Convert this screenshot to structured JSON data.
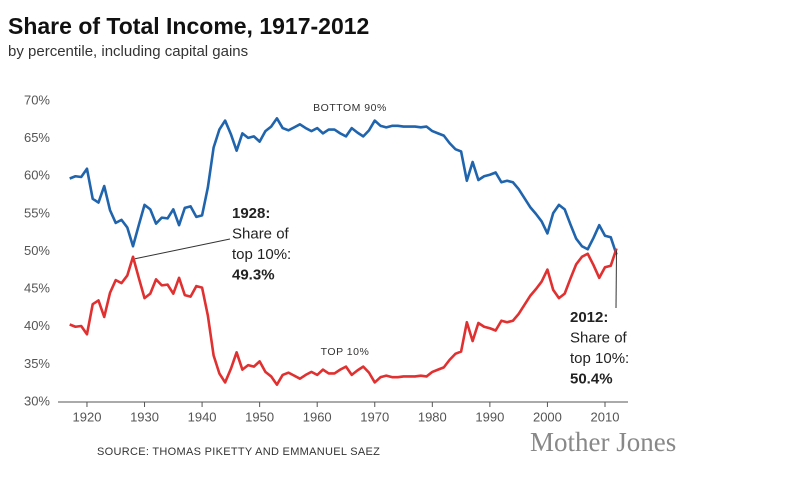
{
  "chart_data": {
    "type": "line",
    "title": "Share of Total Income, 1917-2012",
    "subtitle": "by percentile, including capital gains",
    "source": "SOURCE: THOMAS PIKETTY AND EMMANUEL SAEZ",
    "logo": "Mother Jones",
    "x": [
      1917,
      1918,
      1919,
      1920,
      1921,
      1922,
      1923,
      1924,
      1925,
      1926,
      1927,
      1928,
      1929,
      1930,
      1931,
      1932,
      1933,
      1934,
      1935,
      1936,
      1937,
      1938,
      1939,
      1940,
      1941,
      1942,
      1943,
      1944,
      1945,
      1946,
      1947,
      1948,
      1949,
      1950,
      1951,
      1952,
      1953,
      1954,
      1955,
      1956,
      1957,
      1958,
      1959,
      1960,
      1961,
      1962,
      1963,
      1964,
      1965,
      1966,
      1967,
      1968,
      1969,
      1970,
      1971,
      1972,
      1973,
      1974,
      1975,
      1976,
      1977,
      1978,
      1979,
      1980,
      1981,
      1982,
      1983,
      1984,
      1985,
      1986,
      1987,
      1988,
      1989,
      1990,
      1991,
      1992,
      1993,
      1994,
      1995,
      1996,
      1997,
      1998,
      1999,
      2000,
      2001,
      2002,
      2003,
      2004,
      2005,
      2006,
      2007,
      2008,
      2009,
      2010,
      2011,
      2012
    ],
    "series": [
      {
        "name": "BOTTOM 90%",
        "color": "#1f64ad",
        "values": [
          59.7,
          60.0,
          59.9,
          61.0,
          57.0,
          56.5,
          58.7,
          55.5,
          53.8,
          54.2,
          53.2,
          50.7,
          53.5,
          56.2,
          55.6,
          53.7,
          54.5,
          54.4,
          55.6,
          53.5,
          55.8,
          56.0,
          54.6,
          54.8,
          58.5,
          63.8,
          66.2,
          67.4,
          65.6,
          63.4,
          65.7,
          65.1,
          65.3,
          64.6,
          66.0,
          66.6,
          67.7,
          66.4,
          66.1,
          66.5,
          66.9,
          66.4,
          66.0,
          66.4,
          65.7,
          66.2,
          66.2,
          65.7,
          65.3,
          66.4,
          65.8,
          65.3,
          66.1,
          67.4,
          66.7,
          66.5,
          66.7,
          66.7,
          66.6,
          66.6,
          66.6,
          66.5,
          66.6,
          66.0,
          65.7,
          65.4,
          64.4,
          63.6,
          63.3,
          59.4,
          61.9,
          59.5,
          60.0,
          60.2,
          60.5,
          59.2,
          59.4,
          59.2,
          58.3,
          57.1,
          55.9,
          55.0,
          54.0,
          52.4,
          55.1,
          56.2,
          55.6,
          53.6,
          51.7,
          50.7,
          50.3,
          51.8,
          53.5,
          52.1,
          51.9,
          49.6
        ]
      },
      {
        "name": "TOP 10%",
        "color": "#e03030",
        "values": [
          40.3,
          40.0,
          40.1,
          39.0,
          43.0,
          43.5,
          41.3,
          44.5,
          46.2,
          45.8,
          46.8,
          49.3,
          46.5,
          43.8,
          44.4,
          46.3,
          45.5,
          45.6,
          44.4,
          46.5,
          44.2,
          44.0,
          45.4,
          45.2,
          41.5,
          36.2,
          33.8,
          32.6,
          34.4,
          36.6,
          34.3,
          34.9,
          34.7,
          35.4,
          34.0,
          33.4,
          32.3,
          33.6,
          33.9,
          33.5,
          33.1,
          33.6,
          34.0,
          33.6,
          34.3,
          33.8,
          33.8,
          34.3,
          34.7,
          33.6,
          34.2,
          34.7,
          33.9,
          32.6,
          33.3,
          33.5,
          33.3,
          33.3,
          33.4,
          33.4,
          33.4,
          33.5,
          33.4,
          34.0,
          34.3,
          34.6,
          35.6,
          36.4,
          36.7,
          40.6,
          38.1,
          40.5,
          40.0,
          39.8,
          39.5,
          40.8,
          40.6,
          40.8,
          41.7,
          42.9,
          44.1,
          45.0,
          46.0,
          47.6,
          44.9,
          43.8,
          44.4,
          46.4,
          48.3,
          49.3,
          49.7,
          48.2,
          46.5,
          47.9,
          48.1,
          50.4
        ]
      }
    ],
    "annotations": [
      {
        "lines": [
          "1928:",
          "Share of",
          "top 10%:",
          "49.3%"
        ]
      },
      {
        "lines": [
          "2012:",
          "Share of",
          "top 10%:",
          "50.4%"
        ]
      }
    ],
    "xlim": [
      1917,
      2012
    ],
    "xticks": [
      1920,
      1930,
      1940,
      1950,
      1960,
      1970,
      1980,
      1990,
      2000,
      2010
    ],
    "ylim": [
      30,
      70
    ],
    "yticks": [
      {
        "value": 30,
        "label": "30%"
      },
      {
        "value": 35,
        "label": "35%"
      },
      {
        "value": 40,
        "label": "40%"
      },
      {
        "value": 45,
        "label": "45%"
      },
      {
        "value": 50,
        "label": "50%"
      },
      {
        "value": 55,
        "label": "55%"
      },
      {
        "value": 60,
        "label": "60%"
      },
      {
        "value": 65,
        "label": "65%"
      },
      {
        "value": 70,
        "label": "70%"
      }
    ],
    "grid": false
  }
}
